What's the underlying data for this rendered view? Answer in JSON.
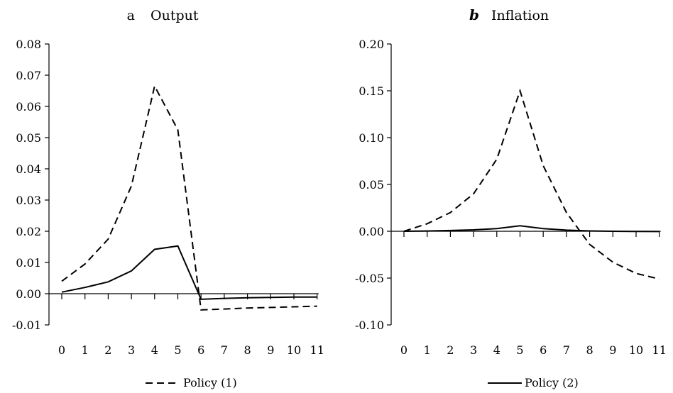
{
  "chart_data": [
    {
      "type": "line",
      "title_letter": "a",
      "title": "Output",
      "xlabel": "",
      "ylabel": "",
      "x": [
        0,
        1,
        2,
        3,
        4,
        5,
        6,
        7,
        8,
        9,
        10,
        11
      ],
      "xlim": [
        0,
        11
      ],
      "ylim": [
        -0.01,
        0.08
      ],
      "yticks": [
        0.08,
        0.07,
        0.06,
        0.05,
        0.04,
        0.03,
        0.02,
        0.01,
        0.0,
        -0.01
      ],
      "ytick_labels": [
        "0.08",
        "0.07",
        "0.06",
        "0.05",
        "0.04",
        "0.03",
        "0.02",
        "0.01",
        "0.00",
        "-0.01"
      ],
      "xtick_labels": [
        "0",
        "1",
        "2",
        "3",
        "4",
        "5",
        "6",
        "7",
        "8",
        "9",
        "10",
        "11"
      ],
      "grid": false,
      "series": [
        {
          "name": "Policy (1)",
          "style": "dashed",
          "color": "#000000",
          "values": [
            0.004,
            0.0095,
            0.0175,
            0.0345,
            0.0665,
            0.0525,
            -0.0052,
            -0.0049,
            -0.0046,
            -0.0044,
            -0.0042,
            -0.004
          ]
        },
        {
          "name": "Policy (2)",
          "style": "solid",
          "color": "#000000",
          "values": [
            0.0005,
            0.002,
            0.0038,
            0.0073,
            0.0142,
            0.0153,
            -0.0018,
            -0.0015,
            -0.0013,
            -0.0012,
            -0.0011,
            -0.0011
          ]
        }
      ]
    },
    {
      "type": "line",
      "title_letter": "b",
      "title": "Inflation",
      "xlabel": "",
      "ylabel": "",
      "x": [
        0,
        1,
        2,
        3,
        4,
        5,
        6,
        7,
        8,
        9,
        10,
        11
      ],
      "xlim": [
        0,
        11
      ],
      "ylim": [
        -0.1,
        0.2
      ],
      "yticks": [
        0.2,
        0.15,
        0.1,
        0.05,
        0.0,
        -0.05,
        -0.1
      ],
      "ytick_labels": [
        "0.20",
        "0.15",
        "0.10",
        "0.05",
        "0.00",
        "-0.05",
        "-0.10"
      ],
      "xtick_labels": [
        "0",
        "1",
        "2",
        "3",
        "4",
        "5",
        "6",
        "7",
        "8",
        "9",
        "10",
        "11"
      ],
      "grid": false,
      "series": [
        {
          "name": "Policy (1)",
          "style": "dashed",
          "color": "#000000",
          "values": [
            0.0,
            0.008,
            0.02,
            0.04,
            0.077,
            0.15,
            0.07,
            0.02,
            -0.014,
            -0.033,
            -0.045,
            -0.051
          ]
        },
        {
          "name": "Policy (2)",
          "style": "solid",
          "color": "#000000",
          "values": [
            0.0,
            0.0003,
            0.0008,
            0.0015,
            0.0028,
            0.0058,
            0.0028,
            0.0012,
            0.0004,
            0.0,
            -0.0002,
            -0.0003
          ]
        }
      ]
    }
  ],
  "legend": [
    {
      "label": "Policy (1)",
      "style": "dashed",
      "placement": "bottom-left"
    },
    {
      "label": "Policy (2)",
      "style": "solid",
      "placement": "bottom-right"
    }
  ]
}
